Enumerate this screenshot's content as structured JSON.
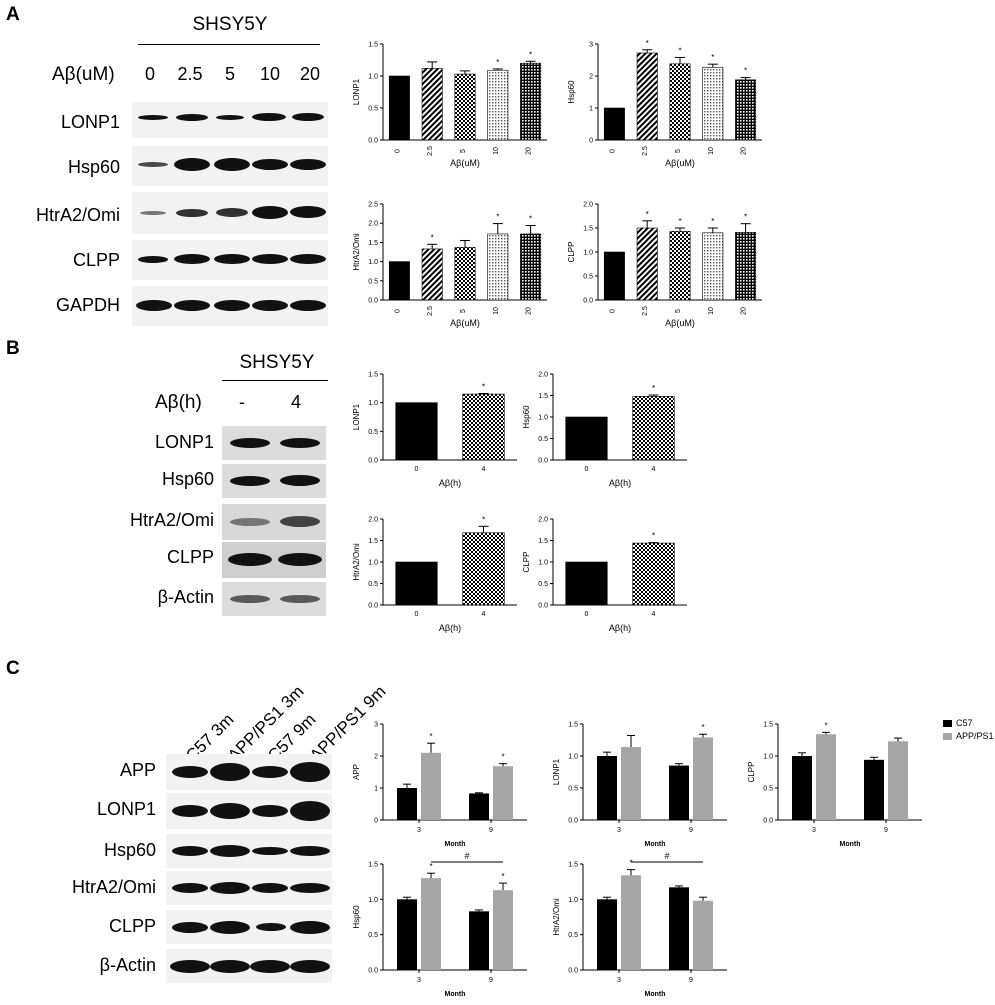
{
  "panels": {
    "A": {
      "letter": "A",
      "cell": "SHSY5Y",
      "treat_label": "Aβ(uM)",
      "lanes": [
        "0",
        "2.5",
        "5",
        "10",
        "20"
      ],
      "rows": [
        "LONP1",
        "Hsp60",
        "HtrA2/Omi",
        "CLPP",
        "GAPDH"
      ]
    },
    "B": {
      "letter": "B",
      "cell": "SHSY5Y",
      "treat_label": "Aβ(h)",
      "lanes": [
        "-",
        "4"
      ],
      "rows": [
        "LONP1",
        "Hsp60",
        "HtrA2/Omi",
        "CLPP",
        "β-Actin"
      ]
    },
    "C": {
      "letter": "C",
      "lanes": [
        "C57 3m",
        "APP/PS1 3m",
        "C57 9m",
        "APP/PS1 9m"
      ],
      "rows": [
        "APP",
        "LONP1",
        "Hsp60",
        "HtrA2/Omi",
        "CLPP",
        "β-Actin"
      ]
    }
  },
  "legend": {
    "c57": "C57",
    "app": "APP/PS1"
  },
  "colors": {
    "black": "#000000",
    "gray": "#a6a6a6"
  },
  "chart_data": [
    {
      "id": "A-LONP1",
      "type": "bar",
      "ylabel": "LONP1",
      "xlabel": "Aβ(uM)",
      "categories": [
        "0",
        "2.5",
        "5",
        "10",
        "20"
      ],
      "values": [
        1.0,
        1.12,
        1.03,
        1.09,
        1.2
      ],
      "errors": [
        0,
        0.1,
        0.05,
        0.02,
        0.03
      ],
      "stars": [
        "",
        "",
        "",
        "*",
        "*"
      ],
      "ylim": [
        0,
        1.5
      ],
      "yticks": [
        "0.0",
        "0.5",
        "1.0",
        "1.5"
      ]
    },
    {
      "id": "A-Hsp60",
      "type": "bar",
      "ylabel": "Hsp60",
      "xlabel": "Aβ(uM)",
      "categories": [
        "0",
        "2.5",
        "5",
        "10",
        "20"
      ],
      "values": [
        1.0,
        2.72,
        2.38,
        2.27,
        1.88
      ],
      "errors": [
        0,
        0.1,
        0.2,
        0.1,
        0.07
      ],
      "stars": [
        "",
        "*",
        "*",
        "*",
        "*"
      ],
      "ylim": [
        0,
        3
      ],
      "yticks": [
        "0",
        "1",
        "2",
        "3"
      ]
    },
    {
      "id": "A-HtrA2",
      "type": "bar",
      "ylabel": "HtrA2/Omi",
      "xlabel": "Aβ(uM)",
      "categories": [
        "0",
        "2.5",
        "5",
        "10",
        "20"
      ],
      "values": [
        1.0,
        1.33,
        1.37,
        1.72,
        1.72
      ],
      "errors": [
        0,
        0.12,
        0.18,
        0.27,
        0.22
      ],
      "stars": [
        "",
        "*",
        "",
        "*",
        "*"
      ],
      "ylim": [
        0,
        2.5
      ],
      "yticks": [
        "0.0",
        "0.5",
        "1.0",
        "1.5",
        "2.0",
        "2.5"
      ]
    },
    {
      "id": "A-CLPP",
      "type": "bar",
      "ylabel": "CLPP",
      "xlabel": "Aβ(uM)",
      "categories": [
        "0",
        "2.5",
        "5",
        "10",
        "20"
      ],
      "values": [
        1.0,
        1.5,
        1.43,
        1.4,
        1.41
      ],
      "errors": [
        0,
        0.15,
        0.07,
        0.1,
        0.18
      ],
      "stars": [
        "",
        "*",
        "*",
        "*",
        "*"
      ],
      "ylim": [
        0,
        2.0
      ],
      "yticks": [
        "0.0",
        "0.5",
        "1.0",
        "1.5",
        "2.0"
      ]
    },
    {
      "id": "B-LONP1",
      "type": "bar",
      "ylabel": "LONP1",
      "xlabel": "Aβ(h)",
      "categories": [
        "0",
        "4"
      ],
      "values": [
        1.0,
        1.15
      ],
      "errors": [
        0,
        0.01
      ],
      "stars": [
        "",
        "*"
      ],
      "ylim": [
        0,
        1.5
      ],
      "yticks": [
        "0.0",
        "0.5",
        "1.0",
        "1.5"
      ]
    },
    {
      "id": "B-Hsp60",
      "type": "bar",
      "ylabel": "Hsp60",
      "xlabel": "Aβ(h)",
      "categories": [
        "0",
        "4"
      ],
      "values": [
        1.0,
        1.48
      ],
      "errors": [
        0,
        0.03
      ],
      "stars": [
        "",
        "*"
      ],
      "ylim": [
        0,
        2.0
      ],
      "yticks": [
        "0.0",
        "0.5",
        "1.0",
        "1.5",
        "2.0"
      ]
    },
    {
      "id": "B-HtrA2",
      "type": "bar",
      "ylabel": "HtrA2/Omi",
      "xlabel": "Aβ(h)",
      "categories": [
        "0",
        "4"
      ],
      "values": [
        1.0,
        1.68
      ],
      "errors": [
        0,
        0.15
      ],
      "stars": [
        "",
        "*"
      ],
      "ylim": [
        0,
        2.0
      ],
      "yticks": [
        "0.0",
        "0.5",
        "1.0",
        "1.5",
        "2.0"
      ]
    },
    {
      "id": "B-CLPP",
      "type": "bar",
      "ylabel": "CLPP",
      "xlabel": "Aβ(h)",
      "categories": [
        "0",
        "4"
      ],
      "values": [
        1.0,
        1.44
      ],
      "errors": [
        0,
        0.01
      ],
      "stars": [
        "",
        "*"
      ],
      "ylim": [
        0,
        2.0
      ],
      "yticks": [
        "0.0",
        "0.5",
        "1.0",
        "1.5",
        "2.0"
      ]
    },
    {
      "id": "C-APP",
      "type": "bar",
      "ylabel": "APP",
      "xlabel": "Month",
      "categories": [
        "3",
        "9"
      ],
      "series": [
        {
          "name": "C57",
          "values": [
            1.0,
            0.83
          ],
          "errors": [
            0.12,
            0.02
          ]
        },
        {
          "name": "APP/PS1",
          "values": [
            2.1,
            1.68
          ],
          "errors": [
            0.3,
            0.08
          ]
        }
      ],
      "stars": [
        "*",
        "*"
      ],
      "ylim": [
        0,
        3
      ],
      "yticks": [
        "0",
        "1",
        "2",
        "3"
      ]
    },
    {
      "id": "C-LONP1",
      "type": "bar",
      "ylabel": "LONP1",
      "xlabel": "Month",
      "categories": [
        "3",
        "9"
      ],
      "series": [
        {
          "name": "C57",
          "values": [
            1.0,
            0.85
          ],
          "errors": [
            0.06,
            0.03
          ]
        },
        {
          "name": "APP/PS1",
          "values": [
            1.14,
            1.29
          ],
          "errors": [
            0.18,
            0.05
          ]
        }
      ],
      "stars": [
        "",
        "*"
      ],
      "ylim": [
        0,
        1.5
      ],
      "yticks": [
        "0.0",
        "0.5",
        "1.0",
        "1.5"
      ]
    },
    {
      "id": "C-CLPP",
      "type": "bar",
      "ylabel": "CLPP",
      "xlabel": "Month",
      "categories": [
        "3",
        "9"
      ],
      "series": [
        {
          "name": "C57",
          "values": [
            1.0,
            0.94
          ],
          "errors": [
            0.05,
            0.04
          ]
        },
        {
          "name": "APP/PS1",
          "values": [
            1.34,
            1.23
          ],
          "errors": [
            0.03,
            0.05
          ]
        }
      ],
      "stars": [
        "*",
        ""
      ],
      "ylim": [
        0,
        1.5
      ],
      "yticks": [
        "0.0",
        "0.5",
        "1.0",
        "1.5"
      ]
    },
    {
      "id": "C-Hsp60",
      "type": "bar",
      "ylabel": "Hsp60",
      "xlabel": "Month",
      "categories": [
        "3",
        "9"
      ],
      "series": [
        {
          "name": "C57",
          "values": [
            1.0,
            0.83
          ],
          "errors": [
            0.03,
            0.02
          ]
        },
        {
          "name": "APP/PS1",
          "values": [
            1.3,
            1.13
          ],
          "errors": [
            0.07,
            0.1
          ]
        }
      ],
      "stars": [
        "*",
        "*"
      ],
      "hash": "#",
      "ylim": [
        0,
        1.5
      ],
      "yticks": [
        "0.0",
        "0.5",
        "1.0",
        "1.5"
      ]
    },
    {
      "id": "C-HtrA2",
      "type": "bar",
      "ylabel": "HtrA2/Omi",
      "xlabel": "Month",
      "categories": [
        "3",
        "9"
      ],
      "series": [
        {
          "name": "C57",
          "values": [
            1.0,
            1.17
          ],
          "errors": [
            0.03,
            0.02
          ]
        },
        {
          "name": "APP/PS1",
          "values": [
            1.34,
            0.98
          ],
          "errors": [
            0.08,
            0.05
          ]
        }
      ],
      "stars": [
        "*",
        ""
      ],
      "hash": "#",
      "ylim": [
        0,
        1.5
      ],
      "yticks": [
        "0.0",
        "0.5",
        "1.0",
        "1.5"
      ]
    }
  ]
}
